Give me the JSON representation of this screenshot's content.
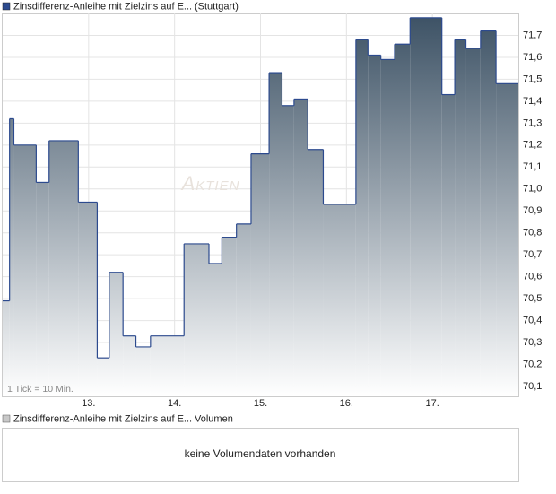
{
  "chart_data": {
    "type": "step-area",
    "title": "Zinsdifferenz-Anleihe mit Zielzins auf E...",
    "exchange": "(Stuttgart)",
    "watermark": "Aktien",
    "tick_note": "1 Tick = 10 Min.",
    "line_color": "#2c4a8e",
    "fill_top_color": "#3e5366",
    "grid": true,
    "x": [
      12.0,
      12.08,
      12.13,
      12.39,
      12.54,
      12.88,
      13.1,
      13.24,
      13.4,
      13.55,
      13.72,
      14.11,
      14.4,
      14.55,
      14.72,
      14.89,
      15.1,
      15.25,
      15.39,
      15.55,
      15.73,
      16.11,
      16.25,
      16.4,
      16.56,
      16.74,
      17.11,
      17.26,
      17.39,
      17.56,
      17.74
    ],
    "values": [
      70.49,
      71.32,
      71.2,
      71.03,
      71.22,
      70.94,
      70.23,
      70.62,
      70.33,
      70.28,
      70.33,
      70.75,
      70.66,
      70.78,
      70.84,
      71.16,
      71.53,
      71.38,
      71.41,
      71.18,
      70.93,
      71.68,
      71.61,
      71.59,
      71.66,
      71.78,
      71.43,
      71.68,
      71.64,
      71.72,
      71.48
    ],
    "xlim": [
      12,
      18
    ],
    "xticks": [
      {
        "value": 13,
        "label": "13."
      },
      {
        "value": 14,
        "label": "14."
      },
      {
        "value": 15,
        "label": "15."
      },
      {
        "value": 16,
        "label": "16."
      },
      {
        "value": 17,
        "label": "17."
      }
    ],
    "ylim": [
      70.055,
      71.8
    ],
    "yticks": [
      {
        "value": 70.1,
        "label": "70,1"
      },
      {
        "value": 70.2,
        "label": "70,2"
      },
      {
        "value": 70.3,
        "label": "70,3"
      },
      {
        "value": 70.4,
        "label": "70,4"
      },
      {
        "value": 70.5,
        "label": "70,5"
      },
      {
        "value": 70.6,
        "label": "70,6"
      },
      {
        "value": 70.7,
        "label": "70,7"
      },
      {
        "value": 70.8,
        "label": "70,8"
      },
      {
        "value": 70.9,
        "label": "70,9"
      },
      {
        "value": 71.0,
        "label": "71,0"
      },
      {
        "value": 71.1,
        "label": "71,1"
      },
      {
        "value": 71.2,
        "label": "71,2"
      },
      {
        "value": 71.3,
        "label": "71,3"
      },
      {
        "value": 71.4,
        "label": "71,4"
      },
      {
        "value": 71.5,
        "label": "71,5"
      },
      {
        "value": 71.6,
        "label": "71,6"
      },
      {
        "value": 71.7,
        "label": "71,7"
      }
    ],
    "volume_panel": {
      "title": "Zinsdifferenz-Anleihe mit Zielzins auf E...",
      "label": "Volumen",
      "message": "keine Volumendaten vorhanden"
    }
  }
}
